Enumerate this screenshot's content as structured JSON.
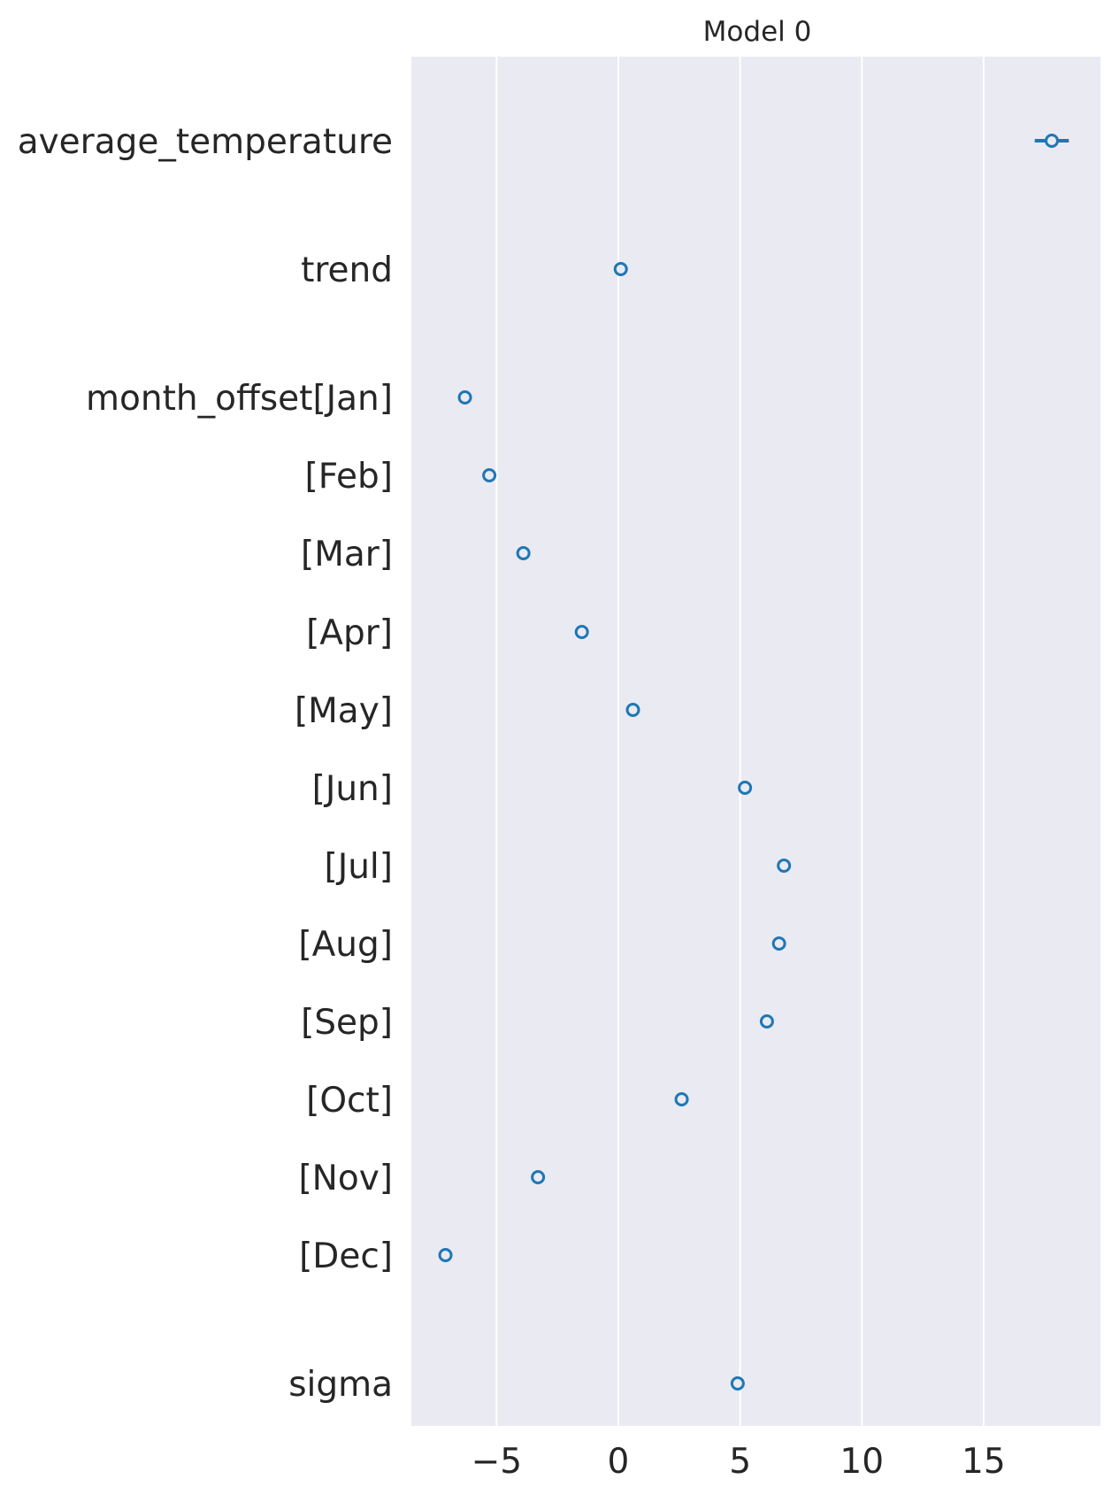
{
  "chart_data": {
    "type": "scatter",
    "title": "Model 0",
    "xlabel": "",
    "ylabel": "",
    "xlim": [
      -8.5,
      19.8
    ],
    "grid": "vertical",
    "legend": "none",
    "xticks": [
      -5,
      0,
      5,
      10,
      15
    ],
    "xtick_labels": [
      "−5",
      "0",
      "5",
      "10",
      "15"
    ],
    "colors": {
      "background": "#eaeaf2",
      "grid": "#ffffff",
      "marker": "#1f77b4",
      "text": "#262626"
    },
    "params": [
      {
        "label": "average_temperature",
        "value": 17.8,
        "interval": [
          17.1,
          18.5
        ]
      },
      {
        "label": "trend",
        "value": 0.1
      },
      {
        "label": "month_offset[Jan]",
        "value": -6.3
      },
      {
        "label": "[Feb]",
        "value": -5.3
      },
      {
        "label": "[Mar]",
        "value": -3.9
      },
      {
        "label": "[Apr]",
        "value": -1.5
      },
      {
        "label": "[May]",
        "value": 0.6
      },
      {
        "label": "[Jun]",
        "value": 5.2
      },
      {
        "label": "[Jul]",
        "value": 6.8
      },
      {
        "label": "[Aug]",
        "value": 6.6
      },
      {
        "label": "[Sep]",
        "value": 6.1
      },
      {
        "label": "[Oct]",
        "value": 2.6
      },
      {
        "label": "[Nov]",
        "value": -3.3
      },
      {
        "label": "[Dec]",
        "value": -7.1
      },
      {
        "label": "sigma",
        "value": 4.9
      }
    ]
  }
}
